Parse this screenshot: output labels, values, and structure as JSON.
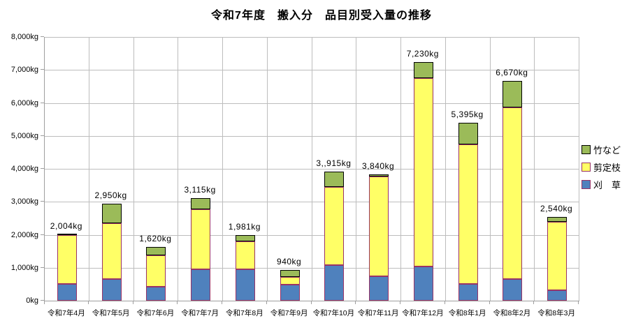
{
  "title": "令和7年度　搬入分　品目別受入量の推移",
  "chart_data": {
    "type": "bar",
    "stacked": true,
    "title": "令和7年度　搬入分　品目別受入量の推移",
    "unit": "kg",
    "categories": [
      "令和7年4月",
      "令和7年5月",
      "令和7年6月",
      "令和7年7月",
      "令和7年8月",
      "令和7年9月",
      "令和7年10月",
      "令和7年11月",
      "令和7年12月",
      "令和8年1月",
      "令和8年2月",
      "令和8年3月"
    ],
    "series": [
      {
        "name": "刈　草",
        "color": "#4F81BD",
        "border_color": "#993366",
        "values": [
          500,
          650,
          420,
          950,
          960,
          490,
          1080,
          750,
          1030,
          515,
          650,
          320
        ]
      },
      {
        "name": "剪定枝",
        "color": "#FFFF66",
        "border_color": "#993366",
        "values": [
          1480,
          1700,
          960,
          1815,
          840,
          240,
          2360,
          3010,
          5730,
          4230,
          5220,
          2080
        ]
      },
      {
        "name": "竹など",
        "color": "#9BBB59",
        "border_color": "#000000",
        "values": [
          24,
          600,
          240,
          350,
          181,
          210,
          475,
          80,
          470,
          650,
          800,
          140
        ]
      }
    ],
    "totals": [
      2004,
      2950,
      1620,
      3115,
      1981,
      940,
      3915,
      3840,
      7230,
      5395,
      6670,
      2540
    ],
    "total_labels": [
      "2,004kg",
      "2,950kg",
      "1,620kg",
      "3,115kg",
      "1,981kg",
      "940kg",
      "3,,915kg",
      "3,840kg",
      "7,230kg",
      "5,395kg",
      "6,670kg",
      "2,540kg"
    ],
    "ylim": [
      0,
      8000
    ],
    "ytick_step": 1000,
    "ytick_labels": [
      "0kg",
      "1,000kg",
      "2,000kg",
      "3,000kg",
      "4,000kg",
      "5,000kg",
      "6,000kg",
      "7,000kg",
      "8,000kg"
    ],
    "grid": true,
    "legend_position": "right",
    "legend_order": [
      "竹など",
      "剪定枝",
      "刈　草"
    ]
  },
  "colors": {
    "background": "#FFFFFF",
    "gridline": "#BDBDBD",
    "axis": "#9E9E9E",
    "text": "#000000"
  }
}
